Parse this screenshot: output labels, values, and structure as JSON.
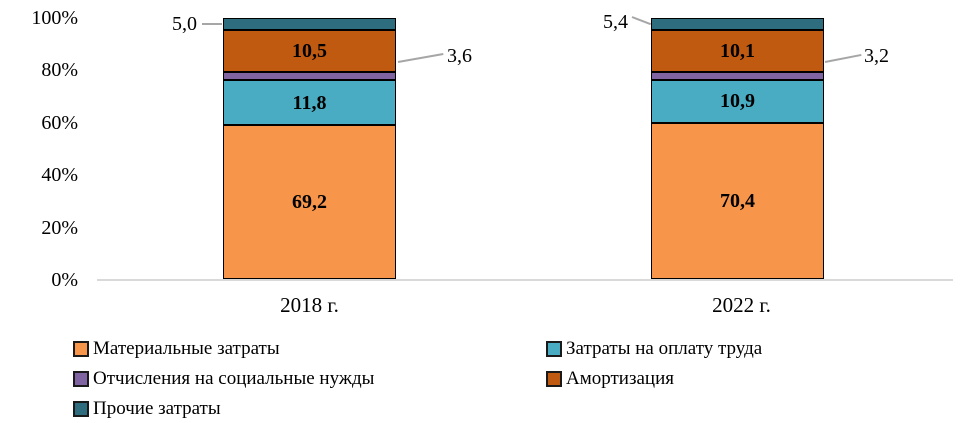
{
  "chart_data": {
    "type": "bar",
    "subtype": "stacked-100-percent-column",
    "title": "",
    "xlabel": "",
    "ylabel": "",
    "ylim": [
      0,
      100
    ],
    "grid": false,
    "y_ticks": [
      "0%",
      "20%",
      "40%",
      "60%",
      "80%",
      "100%"
    ],
    "categories": [
      "2018 г.",
      "2022 г."
    ],
    "series": [
      {
        "name": "Материальные затраты",
        "color": "#F7964A",
        "values": [
          69.2,
          70.4
        ],
        "labels": [
          "69,2",
          "70,4"
        ],
        "label_style": "inside-bold"
      },
      {
        "name": "Затраты на оплату труда",
        "color": "#4AACC3",
        "values": [
          11.8,
          10.9
        ],
        "labels": [
          "11,8",
          "10,9"
        ],
        "label_style": "inside-bold"
      },
      {
        "name": "Отчисления на социальные нужды",
        "color": "#8064A2",
        "values": [
          3.6,
          3.2
        ],
        "labels": [
          "3,6",
          "3,2"
        ],
        "label_style": "callout-right"
      },
      {
        "name": "Амортизация",
        "color": "#C05A11",
        "values": [
          10.5,
          10.1
        ],
        "labels": [
          "10,5",
          "10,1"
        ],
        "label_style": "inside-bold"
      },
      {
        "name": "Прочие затраты",
        "color": "#2D6D7D",
        "values": [
          5.0,
          5.4
        ],
        "labels": [
          "5,0",
          "5,4"
        ],
        "label_style": "outside-top-left"
      }
    ],
    "legend": {
      "position": "bottom",
      "columns": [
        [
          0,
          2,
          4
        ],
        [
          1,
          3
        ]
      ]
    },
    "colors": {
      "leader_line": "#a6a6a6",
      "baseline": "#d9d9d9",
      "segment_border": "#000000",
      "text": "#000000"
    }
  }
}
